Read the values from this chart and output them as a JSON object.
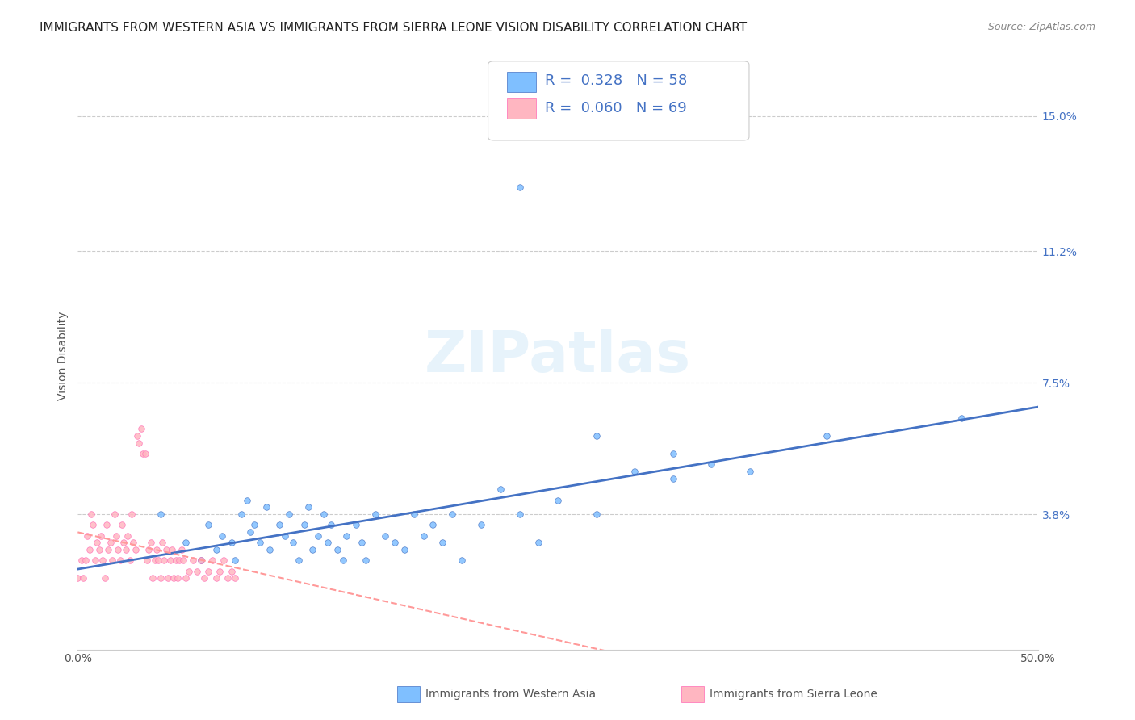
{
  "title": "IMMIGRANTS FROM WESTERN ASIA VS IMMIGRANTS FROM SIERRA LEONE VISION DISABILITY CORRELATION CHART",
  "source_text": "Source: ZipAtlas.com",
  "xlabel_blue": "Immigrants from Western Asia",
  "xlabel_pink": "Immigrants from Sierra Leone",
  "ylabel": "Vision Disability",
  "watermark": "ZIPatlas",
  "xlim": [
    0.0,
    0.5
  ],
  "ylim": [
    0.0,
    0.165
  ],
  "yticks": [
    0.038,
    0.075,
    0.112,
    0.15
  ],
  "ytick_labels": [
    "3.8%",
    "7.5%",
    "11.2%",
    "15.0%"
  ],
  "xticks": [
    0.0,
    0.5
  ],
  "xtick_labels": [
    "0.0%",
    "50.0%"
  ],
  "R_blue": 0.328,
  "N_blue": 58,
  "R_pink": 0.06,
  "N_pink": 69,
  "color_blue": "#7fbfff",
  "color_pink": "#ffb6c1",
  "color_blue_deep": "#4472c4",
  "color_pink_deep": "#ff69b4",
  "color_text_blue": "#4472c4",
  "color_trend_blue": "#4472c4",
  "color_trend_pink": "#ff9999",
  "background": "#ffffff",
  "grid_color": "#cccccc",
  "title_fontsize": 11,
  "axis_label_fontsize": 10,
  "tick_fontsize": 10,
  "legend_fontsize": 13,
  "blue_x": [
    0.043,
    0.056,
    0.064,
    0.068,
    0.072,
    0.075,
    0.08,
    0.082,
    0.085,
    0.088,
    0.09,
    0.092,
    0.095,
    0.098,
    0.1,
    0.105,
    0.108,
    0.11,
    0.112,
    0.115,
    0.118,
    0.12,
    0.122,
    0.125,
    0.128,
    0.13,
    0.132,
    0.135,
    0.138,
    0.14,
    0.145,
    0.148,
    0.15,
    0.155,
    0.16,
    0.165,
    0.17,
    0.175,
    0.18,
    0.185,
    0.19,
    0.195,
    0.2,
    0.21,
    0.22,
    0.23,
    0.24,
    0.25,
    0.27,
    0.29,
    0.31,
    0.33,
    0.35,
    0.39,
    0.23,
    0.27,
    0.31,
    0.46
  ],
  "blue_y": [
    0.038,
    0.03,
    0.025,
    0.035,
    0.028,
    0.032,
    0.03,
    0.025,
    0.038,
    0.042,
    0.033,
    0.035,
    0.03,
    0.04,
    0.028,
    0.035,
    0.032,
    0.038,
    0.03,
    0.025,
    0.035,
    0.04,
    0.028,
    0.032,
    0.038,
    0.03,
    0.035,
    0.028,
    0.025,
    0.032,
    0.035,
    0.03,
    0.025,
    0.038,
    0.032,
    0.03,
    0.028,
    0.038,
    0.032,
    0.035,
    0.03,
    0.038,
    0.025,
    0.035,
    0.045,
    0.038,
    0.03,
    0.042,
    0.038,
    0.05,
    0.048,
    0.052,
    0.05,
    0.06,
    0.13,
    0.06,
    0.055,
    0.065
  ],
  "pink_x": [
    0.0,
    0.002,
    0.003,
    0.004,
    0.005,
    0.006,
    0.007,
    0.008,
    0.009,
    0.01,
    0.011,
    0.012,
    0.013,
    0.014,
    0.015,
    0.016,
    0.017,
    0.018,
    0.019,
    0.02,
    0.021,
    0.022,
    0.023,
    0.024,
    0.025,
    0.026,
    0.027,
    0.028,
    0.029,
    0.03,
    0.031,
    0.032,
    0.033,
    0.034,
    0.035,
    0.036,
    0.037,
    0.038,
    0.039,
    0.04,
    0.041,
    0.042,
    0.043,
    0.044,
    0.045,
    0.046,
    0.047,
    0.048,
    0.049,
    0.05,
    0.051,
    0.052,
    0.053,
    0.054,
    0.055,
    0.056,
    0.058,
    0.06,
    0.062,
    0.064,
    0.066,
    0.068,
    0.07,
    0.072,
    0.074,
    0.076,
    0.078,
    0.08,
    0.082
  ],
  "pink_y": [
    0.02,
    0.025,
    0.02,
    0.025,
    0.032,
    0.028,
    0.038,
    0.035,
    0.025,
    0.03,
    0.028,
    0.032,
    0.025,
    0.02,
    0.035,
    0.028,
    0.03,
    0.025,
    0.038,
    0.032,
    0.028,
    0.025,
    0.035,
    0.03,
    0.028,
    0.032,
    0.025,
    0.038,
    0.03,
    0.028,
    0.06,
    0.058,
    0.062,
    0.055,
    0.055,
    0.025,
    0.028,
    0.03,
    0.02,
    0.025,
    0.028,
    0.025,
    0.02,
    0.03,
    0.025,
    0.028,
    0.02,
    0.025,
    0.028,
    0.02,
    0.025,
    0.02,
    0.025,
    0.028,
    0.025,
    0.02,
    0.022,
    0.025,
    0.022,
    0.025,
    0.02,
    0.022,
    0.025,
    0.02,
    0.022,
    0.025,
    0.02,
    0.022,
    0.02
  ]
}
